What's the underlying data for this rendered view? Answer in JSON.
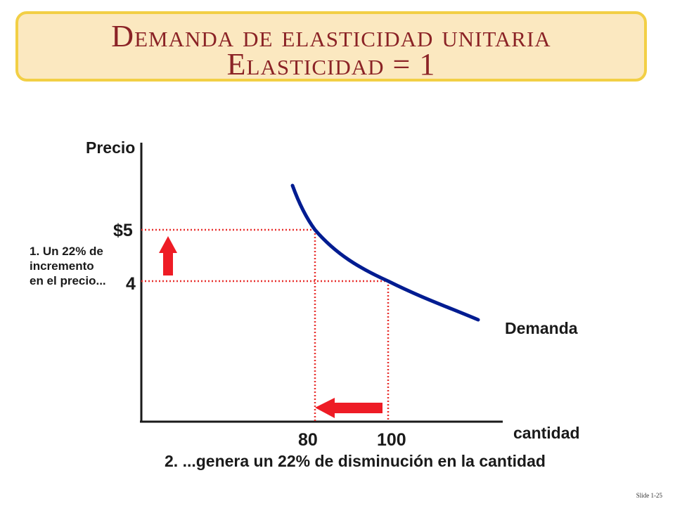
{
  "slide": {
    "title_line1": "Demanda de elasticidad unitaria",
    "title_line2": "Elasticidad = 1",
    "slide_number": "Slide 1-25"
  },
  "chart_data": {
    "type": "line",
    "ylabel": "Precio",
    "xlabel": "cantidad",
    "y_ticks": [
      "$5",
      "4"
    ],
    "x_ticks": [
      "80",
      "100"
    ],
    "series": [
      {
        "name": "Demanda",
        "x": [
          80,
          100
        ],
        "y": [
          5,
          4
        ]
      }
    ],
    "reference_lines": "dotted red lines from axes to points (80, $5) and (100, 4)",
    "annotations": {
      "price_note_lines": [
        "1. Un 22% de",
        "incremento",
        "en el precio..."
      ],
      "quantity_note": "2. ...genera un 22% de disminución en la cantidad"
    },
    "colors": {
      "curve": "#001c91",
      "guides": "#e8302e",
      "arrows": "#ee1c25",
      "title_text": "#8b2326",
      "title_bg": "#fbe8c0",
      "title_border": "#f2cf45"
    }
  }
}
